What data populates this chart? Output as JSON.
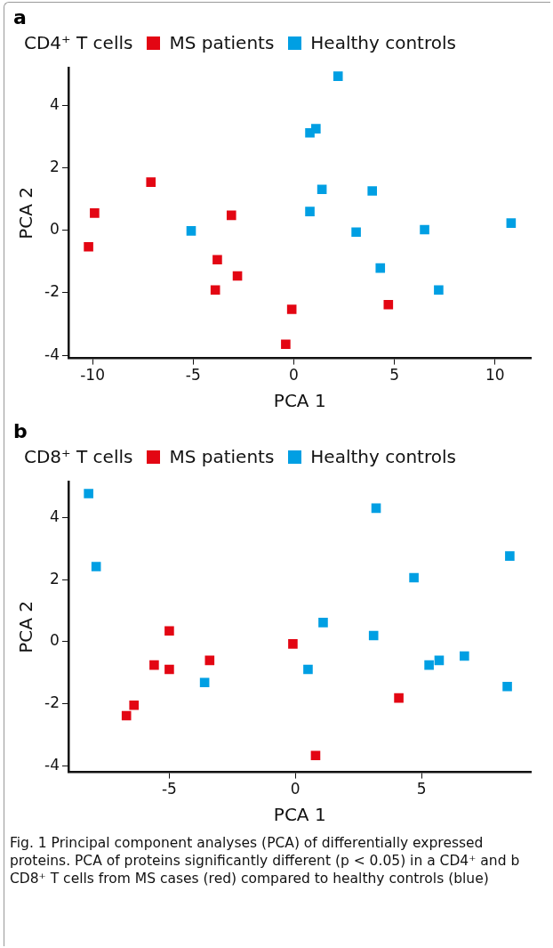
{
  "chart_data": [
    {
      "type": "scatter",
      "title": "a",
      "legend_title": "CD4⁺ T cells",
      "xlabel": "PCA 1",
      "ylabel": "PCA 2",
      "xlim": [
        -11.2,
        11.8
      ],
      "ylim": [
        -4.1,
        5.2
      ],
      "xticks": [
        -10,
        -5,
        0,
        5,
        10
      ],
      "yticks": [
        -4,
        -2,
        0,
        2,
        4
      ],
      "grid": false,
      "legend": "top",
      "marker": "square",
      "series": [
        {
          "name": "MS patients",
          "color": "#e30613",
          "x": [
            -9.9,
            -10.2,
            -7.1,
            -3.1,
            -3.8,
            -2.8,
            -3.9,
            -0.1,
            -0.4,
            4.7
          ],
          "values": [
            0.55,
            -0.53,
            1.54,
            0.48,
            -0.94,
            -1.46,
            -1.91,
            -2.53,
            -3.65,
            -2.38
          ]
        },
        {
          "name": "Healthy controls",
          "color": "#009fe3",
          "x": [
            -5.1,
            2.2,
            0.8,
            1.1,
            0.8,
            1.4,
            3.9,
            3.1,
            6.5,
            4.3,
            7.2,
            10.8
          ],
          "values": [
            -0.02,
            4.93,
            3.12,
            3.25,
            0.6,
            1.31,
            1.26,
            -0.06,
            0.02,
            -1.21,
            -1.91,
            0.23
          ]
        }
      ]
    },
    {
      "type": "scatter",
      "title": "b",
      "legend_title": "CD8⁺ T cells",
      "xlabel": "PCA 1",
      "ylabel": "PCA 2",
      "xlim": [
        -9,
        9.35
      ],
      "ylim": [
        -4.2,
        5.15
      ],
      "xticks": [
        -5,
        0,
        5
      ],
      "yticks": [
        -4,
        -2,
        0,
        2,
        4
      ],
      "grid": false,
      "legend": "top",
      "marker": "square",
      "series": [
        {
          "name": "MS patients",
          "color": "#e30613",
          "x": [
            -5.0,
            -5.6,
            -5.0,
            -3.4,
            -6.4,
            -6.7,
            -0.1,
            0.8,
            4.1
          ],
          "values": [
            0.35,
            -0.75,
            -0.89,
            -0.6,
            -2.04,
            -2.38,
            -0.07,
            -3.66,
            -1.81
          ]
        },
        {
          "name": "Healthy controls",
          "color": "#009fe3",
          "x": [
            -8.2,
            -7.9,
            -3.6,
            0.5,
            1.1,
            3.1,
            3.2,
            4.7,
            5.3,
            5.7,
            6.7,
            8.5,
            8.4
          ],
          "values": [
            4.77,
            2.42,
            -1.31,
            -0.89,
            0.62,
            0.2,
            4.3,
            2.06,
            -0.75,
            -0.6,
            -0.46,
            2.76,
            -1.44
          ]
        }
      ],
      "annotations": [
        "Fig. 1 Principal component analyses (PCA) of differentially expressed proteins. PCA of proteins significantly different (p < 0.05) in a CD4⁺ and b CD8⁺ T cells from MS cases (red) compared to healthy controls (blue)"
      ]
    }
  ]
}
